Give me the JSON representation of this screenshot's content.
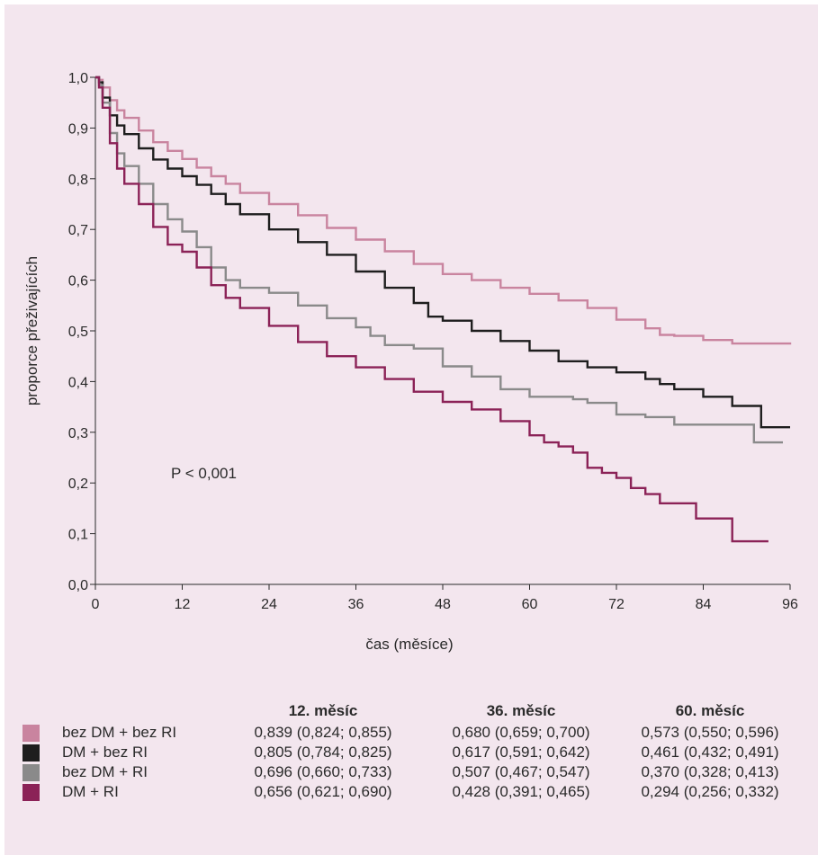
{
  "chart_data": {
    "type": "line",
    "step": true,
    "xlabel": "čas (měsíce)",
    "ylabel": "proporce přeživajících",
    "xlim": [
      0,
      96
    ],
    "ylim": [
      0,
      1
    ],
    "xticks": [
      "0",
      "12",
      "24",
      "36",
      "48",
      "60",
      "72",
      "84",
      "96"
    ],
    "yticks": [
      "0,0",
      "0,1",
      "0,2",
      "0,3",
      "0,4",
      "0,5",
      "0,6",
      "0,7",
      "0,8",
      "0,9",
      "1,0"
    ],
    "grid": false,
    "annotation": "P < 0,001",
    "series": [
      {
        "name": "bez DM + bez RI",
        "color": "#c9849f",
        "points": [
          [
            0,
            1.0
          ],
          [
            0.5,
            0.995
          ],
          [
            1,
            0.98
          ],
          [
            2,
            0.955
          ],
          [
            3,
            0.935
          ],
          [
            4,
            0.92
          ],
          [
            6,
            0.895
          ],
          [
            8,
            0.872
          ],
          [
            10,
            0.855
          ],
          [
            12,
            0.839
          ],
          [
            14,
            0.822
          ],
          [
            16,
            0.805
          ],
          [
            18,
            0.79
          ],
          [
            20,
            0.772
          ],
          [
            24,
            0.75
          ],
          [
            28,
            0.728
          ],
          [
            32,
            0.703
          ],
          [
            36,
            0.68
          ],
          [
            40,
            0.657
          ],
          [
            44,
            0.632
          ],
          [
            48,
            0.612
          ],
          [
            52,
            0.6
          ],
          [
            56,
            0.585
          ],
          [
            60,
            0.573
          ],
          [
            64,
            0.56
          ],
          [
            68,
            0.545
          ],
          [
            72,
            0.522
          ],
          [
            76,
            0.505
          ],
          [
            78,
            0.492
          ],
          [
            80,
            0.49
          ],
          [
            84,
            0.482
          ],
          [
            88,
            0.475
          ],
          [
            96,
            0.473
          ]
        ]
      },
      {
        "name": "DM + bez RI",
        "color": "#1e1e1e",
        "points": [
          [
            0,
            1.0
          ],
          [
            0.5,
            0.99
          ],
          [
            1,
            0.96
          ],
          [
            2,
            0.925
          ],
          [
            3,
            0.905
          ],
          [
            4,
            0.888
          ],
          [
            6,
            0.86
          ],
          [
            8,
            0.838
          ],
          [
            10,
            0.82
          ],
          [
            12,
            0.805
          ],
          [
            14,
            0.788
          ],
          [
            16,
            0.77
          ],
          [
            18,
            0.75
          ],
          [
            20,
            0.73
          ],
          [
            24,
            0.7
          ],
          [
            28,
            0.675
          ],
          [
            32,
            0.65
          ],
          [
            36,
            0.617
          ],
          [
            40,
            0.585
          ],
          [
            44,
            0.555
          ],
          [
            46,
            0.528
          ],
          [
            48,
            0.52
          ],
          [
            52,
            0.5
          ],
          [
            56,
            0.48
          ],
          [
            60,
            0.461
          ],
          [
            64,
            0.44
          ],
          [
            68,
            0.428
          ],
          [
            72,
            0.418
          ],
          [
            76,
            0.405
          ],
          [
            78,
            0.395
          ],
          [
            80,
            0.385
          ],
          [
            84,
            0.37
          ],
          [
            88,
            0.352
          ],
          [
            92,
            0.31
          ],
          [
            96,
            0.31
          ]
        ]
      },
      {
        "name": "bez DM + RI",
        "color": "#8a8a8a",
        "points": [
          [
            0,
            1.0
          ],
          [
            0.5,
            0.985
          ],
          [
            1,
            0.95
          ],
          [
            2,
            0.89
          ],
          [
            3,
            0.85
          ],
          [
            4,
            0.825
          ],
          [
            6,
            0.79
          ],
          [
            8,
            0.75
          ],
          [
            10,
            0.72
          ],
          [
            12,
            0.696
          ],
          [
            14,
            0.665
          ],
          [
            16,
            0.625
          ],
          [
            18,
            0.6
          ],
          [
            20,
            0.585
          ],
          [
            24,
            0.575
          ],
          [
            28,
            0.55
          ],
          [
            32,
            0.525
          ],
          [
            36,
            0.507
          ],
          [
            38,
            0.49
          ],
          [
            40,
            0.472
          ],
          [
            44,
            0.465
          ],
          [
            48,
            0.43
          ],
          [
            52,
            0.41
          ],
          [
            56,
            0.385
          ],
          [
            60,
            0.37
          ],
          [
            64,
            0.37
          ],
          [
            66,
            0.365
          ],
          [
            68,
            0.358
          ],
          [
            72,
            0.335
          ],
          [
            76,
            0.33
          ],
          [
            80,
            0.315
          ],
          [
            84,
            0.315
          ],
          [
            88,
            0.315
          ],
          [
            91,
            0.28
          ],
          [
            95,
            0.28
          ]
        ]
      },
      {
        "name": "DM + RI",
        "color": "#8b2257",
        "points": [
          [
            0,
            1.0
          ],
          [
            0.5,
            0.98
          ],
          [
            1,
            0.94
          ],
          [
            2,
            0.87
          ],
          [
            3,
            0.82
          ],
          [
            4,
            0.79
          ],
          [
            6,
            0.75
          ],
          [
            8,
            0.705
          ],
          [
            10,
            0.67
          ],
          [
            12,
            0.656
          ],
          [
            14,
            0.625
          ],
          [
            16,
            0.59
          ],
          [
            18,
            0.565
          ],
          [
            20,
            0.545
          ],
          [
            24,
            0.51
          ],
          [
            28,
            0.478
          ],
          [
            32,
            0.45
          ],
          [
            36,
            0.428
          ],
          [
            40,
            0.405
          ],
          [
            44,
            0.38
          ],
          [
            48,
            0.36
          ],
          [
            52,
            0.345
          ],
          [
            56,
            0.322
          ],
          [
            60,
            0.294
          ],
          [
            62,
            0.28
          ],
          [
            64,
            0.272
          ],
          [
            66,
            0.26
          ],
          [
            68,
            0.23
          ],
          [
            70,
            0.22
          ],
          [
            72,
            0.21
          ],
          [
            74,
            0.19
          ],
          [
            76,
            0.178
          ],
          [
            78,
            0.16
          ],
          [
            80,
            0.16
          ],
          [
            83,
            0.13
          ],
          [
            86,
            0.13
          ],
          [
            88,
            0.085
          ],
          [
            93,
            0.085
          ]
        ]
      }
    ]
  },
  "table": {
    "headers": [
      "12. měsíc",
      "36. měsíc",
      "60. měsíc"
    ],
    "rows": [
      {
        "label": "bez DM + bez RI",
        "color": "#c9849f",
        "v1": "0,839 (0,824; 0,855)",
        "v2": "0,680 (0,659; 0,700)",
        "v3": "0,573 (0,550; 0,596)"
      },
      {
        "label": "DM + bez RI",
        "color": "#1e1e1e",
        "v1": "0,805 (0,784; 0,825)",
        "v2": "0,617 (0,591; 0,642)",
        "v3": "0,461 (0,432; 0,491)"
      },
      {
        "label": "bez DM + RI",
        "color": "#8a8a8a",
        "v1": "0,696 (0,660; 0,733)",
        "v2": "0,507 (0,467; 0,547)",
        "v3": "0,370 (0,328; 0,413)"
      },
      {
        "label": "DM + RI",
        "color": "#8b2257",
        "v1": "0,656 (0,621; 0,690)",
        "v2": "0,428 (0,391; 0,465)",
        "v3": "0,294 (0,256; 0,332)"
      }
    ]
  }
}
